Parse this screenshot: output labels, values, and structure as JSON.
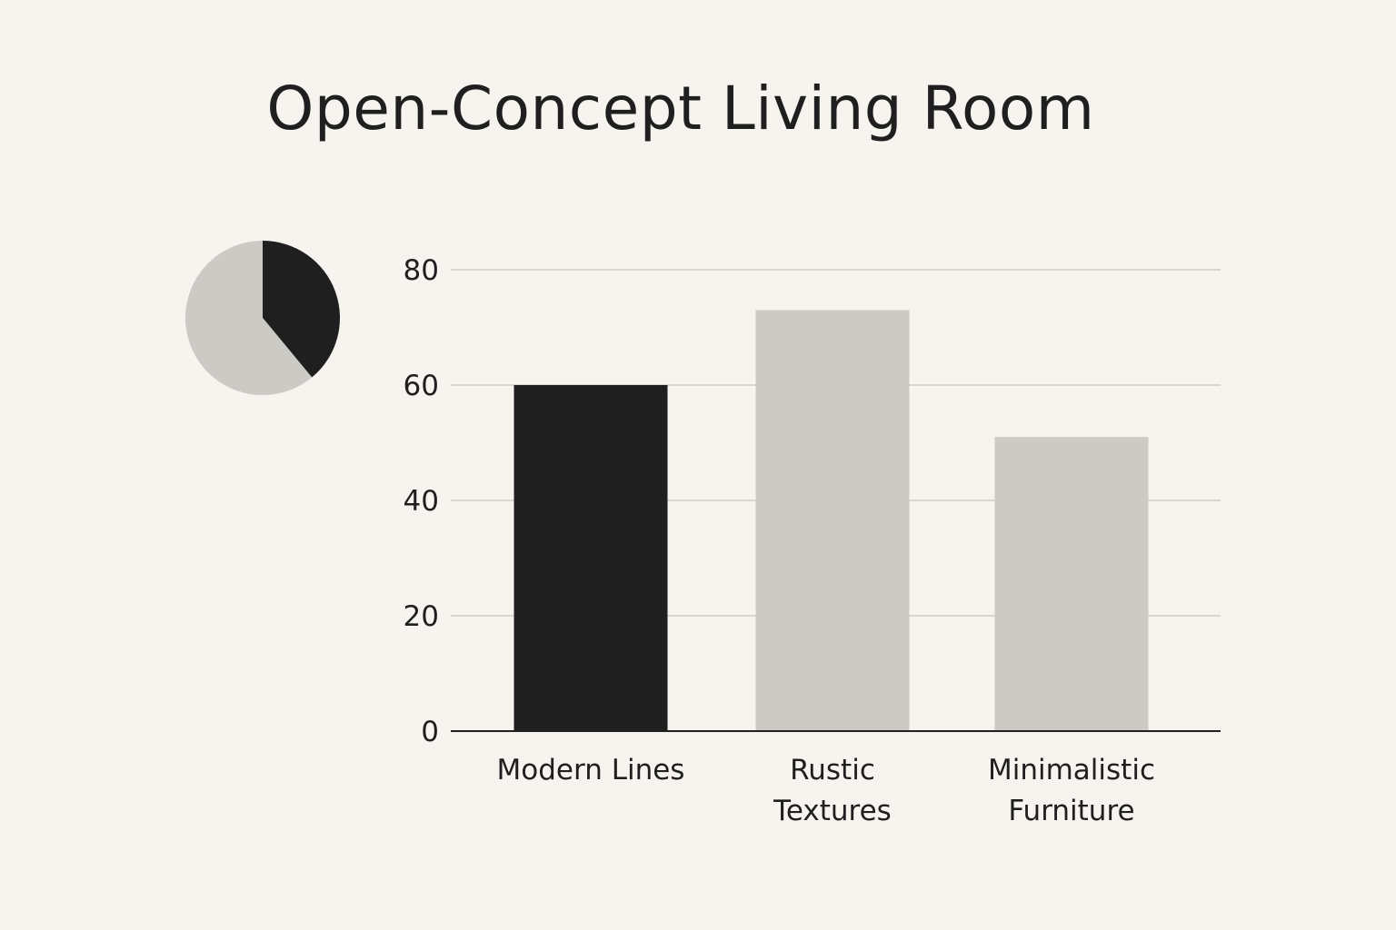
{
  "chart_data": [
    {
      "type": "bar",
      "title": "Open-Concept Living Room",
      "categories": [
        [
          "Modern Lines"
        ],
        [
          "Rustic",
          "Textures"
        ],
        [
          "Minimalistic",
          "Furniture"
        ]
      ],
      "values": [
        60,
        73,
        51
      ],
      "colors": [
        "#1f1f1f",
        "#cccac5",
        "#cccac5"
      ],
      "ylim": [
        0,
        80
      ],
      "yticks": [
        0,
        20,
        40,
        60,
        80
      ],
      "grid": true,
      "xlabel": "",
      "ylabel": ""
    },
    {
      "type": "pie",
      "slices": [
        {
          "value": 39,
          "color": "#1f1f1f"
        },
        {
          "value": 61,
          "color": "#cccac5"
        }
      ]
    }
  ]
}
